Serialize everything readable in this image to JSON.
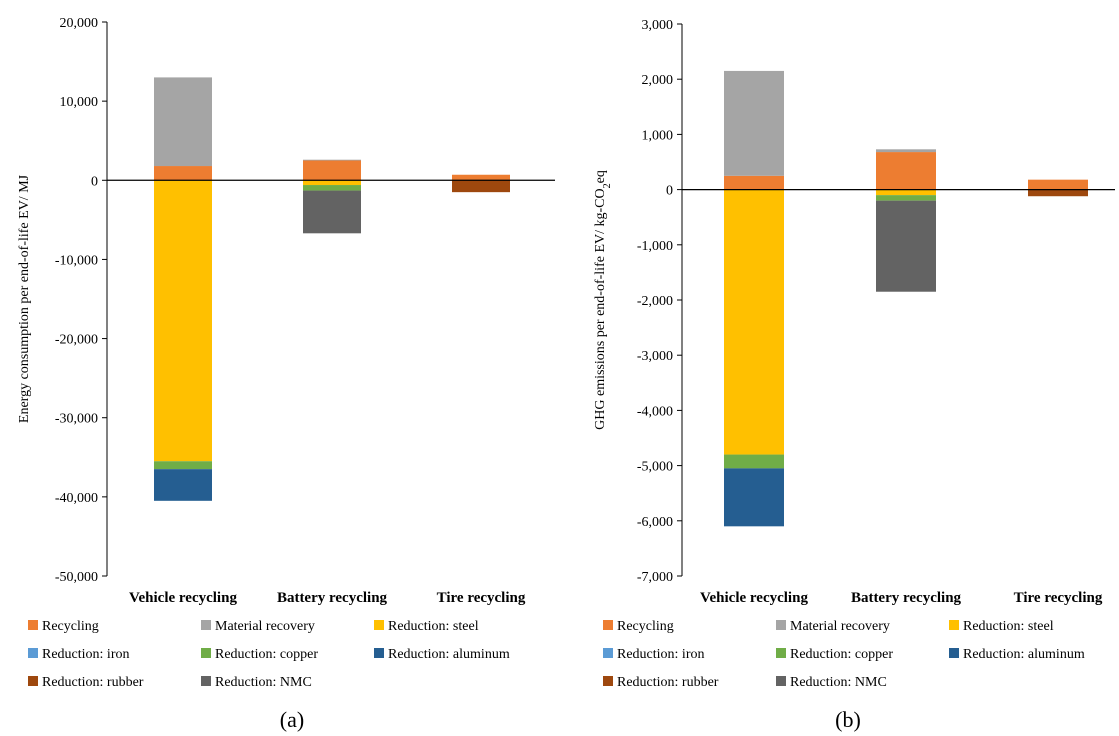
{
  "legend_items": [
    {
      "label": "Recycling",
      "color": "#ED7D31"
    },
    {
      "label": "Material recovery",
      "color": "#A5A5A5"
    },
    {
      "label": "Reduction: steel",
      "color": "#FFC000"
    },
    {
      "label": "Reduction: iron",
      "color": "#5B9BD5"
    },
    {
      "label": "Reduction: copper",
      "color": "#70AD47"
    },
    {
      "label": "Reduction: aluminum",
      "color": "#255E91"
    },
    {
      "label": "Reduction: rubber",
      "color": "#9E480E"
    },
    {
      "label": "Reduction: NMC",
      "color": "#636363"
    }
  ],
  "chart_data": [
    {
      "type": "bar",
      "stacked": true,
      "panel_label": "(a)",
      "ylabel": "Energy consumption per end-of-life EV/ MJ",
      "ylabel_sub": "",
      "ylim": [
        -50000,
        20000
      ],
      "ytick_values": [
        -50000,
        -40000,
        -30000,
        -20000,
        -10000,
        0,
        10000,
        20000
      ],
      "ytick_labels": [
        "-50,000",
        "-40,000",
        "-30,000",
        "-20,000",
        "-10,000",
        "0",
        "10,000",
        "20,000"
      ],
      "categories": [
        "Vehicle recycling",
        "Battery recycling",
        "Tire recycling"
      ],
      "series": [
        {
          "name": "Recycling",
          "values": [
            1800,
            2500,
            700
          ]
        },
        {
          "name": "Material recovery",
          "values": [
            11200,
            100,
            0
          ]
        },
        {
          "name": "Reduction: steel",
          "values": [
            -35500,
            -600,
            0
          ]
        },
        {
          "name": "Reduction: iron",
          "values": [
            0,
            0,
            0
          ]
        },
        {
          "name": "Reduction: copper",
          "values": [
            -1000,
            -700,
            0
          ]
        },
        {
          "name": "Reduction: aluminum",
          "values": [
            -4000,
            0,
            0
          ]
        },
        {
          "name": "Reduction: rubber",
          "values": [
            0,
            0,
            -1500
          ]
        },
        {
          "name": "Reduction: NMC",
          "values": [
            0,
            -5400,
            0
          ]
        }
      ]
    },
    {
      "type": "bar",
      "stacked": true,
      "panel_label": "(b)",
      "ylabel": "GHG emissions per end-of-life EV/ kg-CO",
      "ylabel_sub": "2",
      "ylabel_tail": "eq",
      "ylim": [
        -7000,
        3000
      ],
      "ytick_values": [
        -7000,
        -6000,
        -5000,
        -4000,
        -3000,
        -2000,
        -1000,
        0,
        1000,
        2000,
        3000
      ],
      "ytick_labels": [
        "-7,000",
        "-6,000",
        "-5,000",
        "-4,000",
        "-3,000",
        "-2,000",
        "-1,000",
        "0",
        "1,000",
        "2,000",
        "3,000"
      ],
      "categories": [
        "Vehicle recycling",
        "Battery recycling",
        "Tire recycling"
      ],
      "series": [
        {
          "name": "Recycling",
          "values": [
            250,
            680,
            180
          ]
        },
        {
          "name": "Material recovery",
          "values": [
            1900,
            50,
            0
          ]
        },
        {
          "name": "Reduction: steel",
          "values": [
            -4800,
            -100,
            0
          ]
        },
        {
          "name": "Reduction: iron",
          "values": [
            0,
            0,
            0
          ]
        },
        {
          "name": "Reduction: copper",
          "values": [
            -250,
            -100,
            0
          ]
        },
        {
          "name": "Reduction: aluminum",
          "values": [
            -1050,
            0,
            0
          ]
        },
        {
          "name": "Reduction: rubber",
          "values": [
            0,
            0,
            -120
          ]
        },
        {
          "name": "Reduction: NMC",
          "values": [
            0,
            -1650,
            0
          ]
        }
      ]
    }
  ]
}
